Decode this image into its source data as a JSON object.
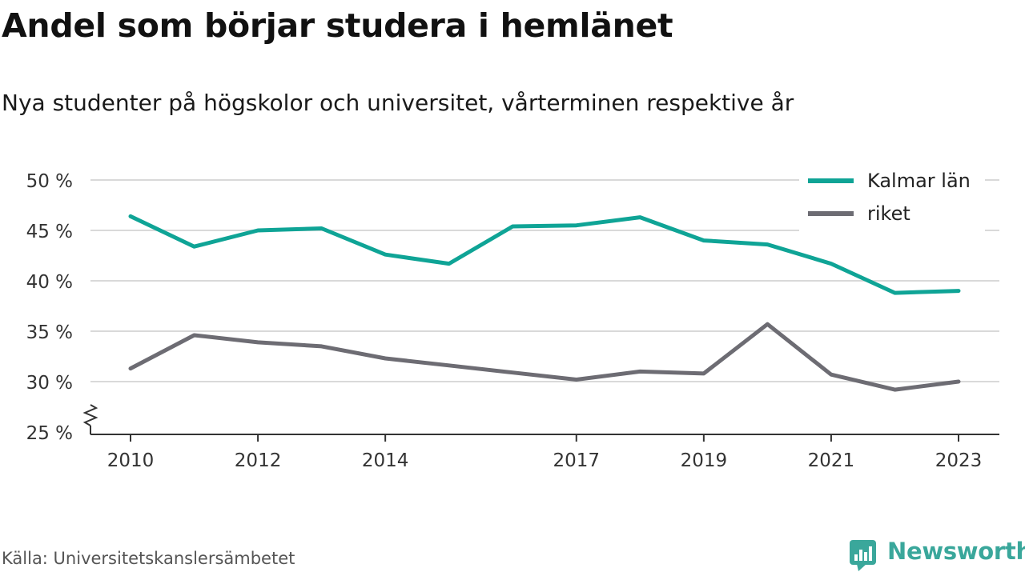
{
  "title": "Andel som börjar studera i hemlänet",
  "subtitle": "Nya studenter på högskolor och universitet, vårterminen respektive år",
  "source": "Källa: Universitetskanslersämbetet",
  "brand": {
    "name": "Newsworthy",
    "icon": "newsworthy-logo-icon",
    "color": "#3aa79b"
  },
  "chart_data": {
    "type": "line",
    "x": [
      2010,
      2011,
      2012,
      2013,
      2014,
      2015,
      2016,
      2017,
      2018,
      2019,
      2020,
      2021,
      2022,
      2023
    ],
    "xticks": [
      2010,
      2012,
      2014,
      2017,
      2019,
      2021,
      2023
    ],
    "xtick_labels": [
      "2010",
      "2012",
      "2014",
      "2017",
      "2019",
      "2021",
      "2023"
    ],
    "ylim": [
      25,
      50
    ],
    "yticks": [
      25,
      30,
      35,
      40,
      45,
      50
    ],
    "ytick_labels": [
      "25 %",
      "30 %",
      "35 %",
      "40 %",
      "45 %",
      "50 %"
    ],
    "y_axis_break": true,
    "grid": true,
    "legend_position": "top-right",
    "series": [
      {
        "name": "Kalmar län",
        "color": "#0fa496",
        "values": [
          46.4,
          43.4,
          45.0,
          45.2,
          42.6,
          41.7,
          45.4,
          45.5,
          46.3,
          44.0,
          43.6,
          41.7,
          38.8,
          39.0
        ]
      },
      {
        "name": "riket",
        "color": "#6d6c73",
        "values": [
          31.3,
          34.6,
          33.9,
          33.5,
          32.3,
          31.6,
          30.9,
          30.2,
          31.0,
          30.8,
          35.7,
          30.7,
          29.2,
          30.0
        ]
      }
    ]
  }
}
